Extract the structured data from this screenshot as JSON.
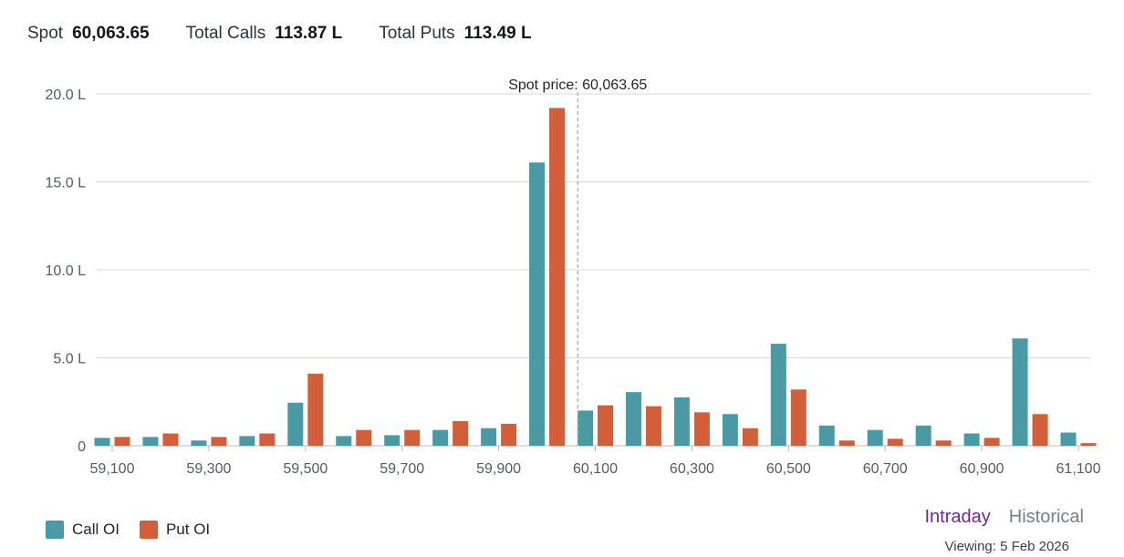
{
  "header": {
    "spot_label": "Spot",
    "spot_value": "60,063.65",
    "calls_label": "Total Calls",
    "calls_value": "113.87 L",
    "puts_label": "Total Puts",
    "puts_value": "113.49 L"
  },
  "legend": {
    "call_label": "Call OI",
    "put_label": "Put OI"
  },
  "toggle": {
    "intraday": "Intraday",
    "historical": "Historical",
    "active": "intraday"
  },
  "viewing": "Viewing: 5 Feb 2026",
  "colors": {
    "call": "#4a9aa6",
    "put": "#d35f3a",
    "active_tab": "#6b2c8e",
    "grid": "#d9d9d9"
  },
  "chart_data": {
    "type": "bar",
    "unit": "L",
    "strikes": [
      59100,
      59200,
      59300,
      59400,
      59500,
      59600,
      59700,
      59800,
      59900,
      60000,
      60100,
      60200,
      60300,
      60400,
      60500,
      60600,
      60700,
      60800,
      60900,
      61000,
      61100
    ],
    "x_tick_labels": [
      "59,100",
      "59,300",
      "59,500",
      "59,700",
      "59,900",
      "60,100",
      "60,300",
      "60,500",
      "60,700",
      "60,900",
      "61,100"
    ],
    "y_tick_labels": [
      "0",
      "5.0 L",
      "10.0 L",
      "15.0 L",
      "20.0 L"
    ],
    "ylim": [
      0,
      20
    ],
    "series": [
      {
        "name": "Call OI",
        "values": [
          0.45,
          0.5,
          0.3,
          0.55,
          2.45,
          0.55,
          0.6,
          0.9,
          1.0,
          16.1,
          2.0,
          3.05,
          2.75,
          1.8,
          5.8,
          1.15,
          0.9,
          1.15,
          0.7,
          6.1,
          0.75
        ]
      },
      {
        "name": "Put OI",
        "values": [
          0.5,
          0.7,
          0.5,
          0.7,
          4.1,
          0.9,
          0.9,
          1.4,
          1.25,
          19.2,
          2.3,
          2.25,
          1.9,
          1.0,
          3.2,
          0.3,
          0.4,
          0.3,
          0.45,
          1.8,
          0.15
        ]
      }
    ],
    "spot": 60063.65,
    "spot_annotation": "Spot price: 60,063.65",
    "grid": true,
    "legend_position": "bottom-left"
  }
}
